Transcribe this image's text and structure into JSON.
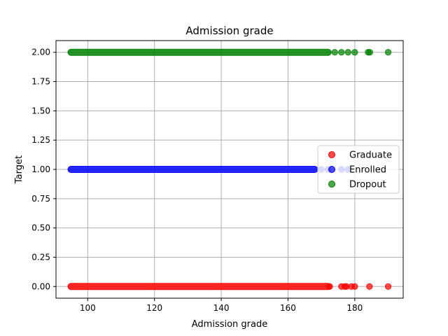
{
  "chart_data": {
    "type": "scatter",
    "title": "Admission grade",
    "xlabel": "Admission grade",
    "ylabel": "Target",
    "xlim": [
      90.5,
      194.5
    ],
    "ylim": [
      -0.1,
      2.1
    ],
    "xticks": [
      100,
      120,
      140,
      160,
      180
    ],
    "xtick_labels": [
      "100",
      "120",
      "140",
      "160",
      "180"
    ],
    "yticks": [
      0,
      0.25,
      0.5,
      0.75,
      1.0,
      1.25,
      1.5,
      1.75,
      2.0
    ],
    "ytick_labels": [
      "0.00",
      "0.25",
      "0.50",
      "0.75",
      "1.00",
      "1.25",
      "1.50",
      "1.75",
      "2.00"
    ],
    "grid": true,
    "legend_position": "center-right",
    "series": [
      {
        "name": "Graduate",
        "color": "#ff0000",
        "y": 0,
        "dense_range": [
          95,
          172
        ],
        "x": [
          172.5,
          176,
          177,
          177.5,
          179,
          180,
          184.4,
          190
        ]
      },
      {
        "name": "Enrolled",
        "color": "#0000ff",
        "y": 1,
        "dense_range": [
          95,
          168
        ],
        "x": [
          170,
          172,
          176,
          178
        ]
      },
      {
        "name": "Dropout",
        "color": "#008000",
        "y": 2,
        "dense_range": [
          95,
          172
        ],
        "x": [
          174,
          176,
          178,
          180,
          184,
          184.5,
          190
        ]
      }
    ]
  }
}
